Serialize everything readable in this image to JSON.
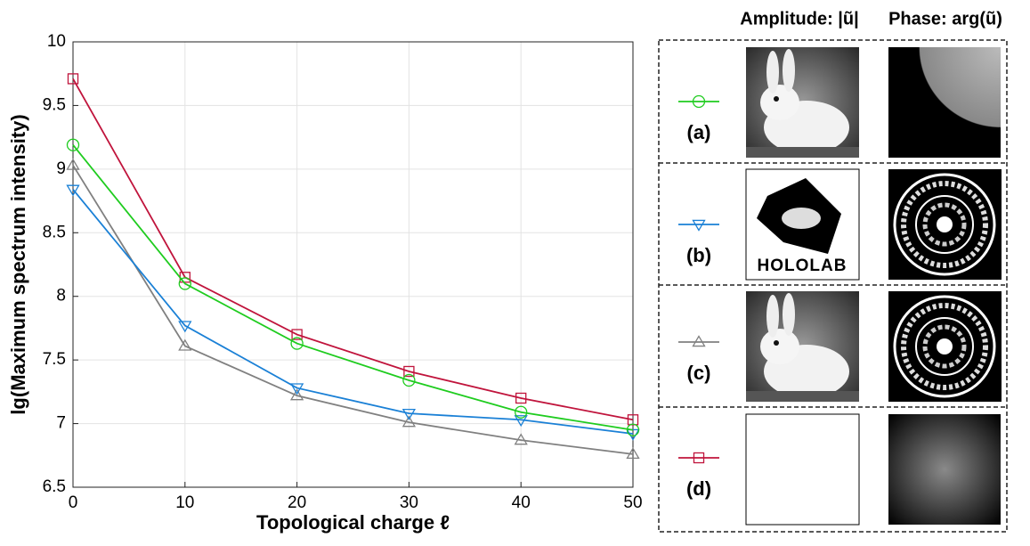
{
  "chart_data": {
    "type": "line",
    "xlabel": "Topological charge ℓ",
    "ylabel": "lg(Maximum spectrum intensity)",
    "x": [
      0,
      10,
      20,
      30,
      40,
      50
    ],
    "xlim": [
      0,
      50
    ],
    "xticks": [
      0,
      10,
      20,
      30,
      40,
      50
    ],
    "ylim": [
      6.5,
      10
    ],
    "yticks": [
      6.5,
      7,
      7.5,
      8,
      8.5,
      9,
      9.5,
      10
    ],
    "grid": true,
    "column_headers": [
      "Amplitude: |ũ|",
      "Phase: arg(ũ)"
    ],
    "annotations": [
      "HOLOLAB"
    ],
    "series": [
      {
        "name": "(a)",
        "color": "#1fcc1f",
        "marker": "circle",
        "values": [
          9.19,
          8.1,
          7.63,
          7.34,
          7.09,
          6.95
        ]
      },
      {
        "name": "(b)",
        "color": "#1a80d6",
        "marker": "triangle-down",
        "values": [
          8.84,
          7.77,
          7.28,
          7.08,
          7.03,
          6.92
        ]
      },
      {
        "name": "(c)",
        "color": "#808080",
        "marker": "triangle-up",
        "values": [
          9.03,
          7.61,
          7.22,
          7.01,
          6.87,
          6.76
        ]
      },
      {
        "name": "(d)",
        "color": "#c0143c",
        "marker": "square",
        "values": [
          9.71,
          8.15,
          7.7,
          7.41,
          7.2,
          7.03
        ]
      }
    ]
  }
}
